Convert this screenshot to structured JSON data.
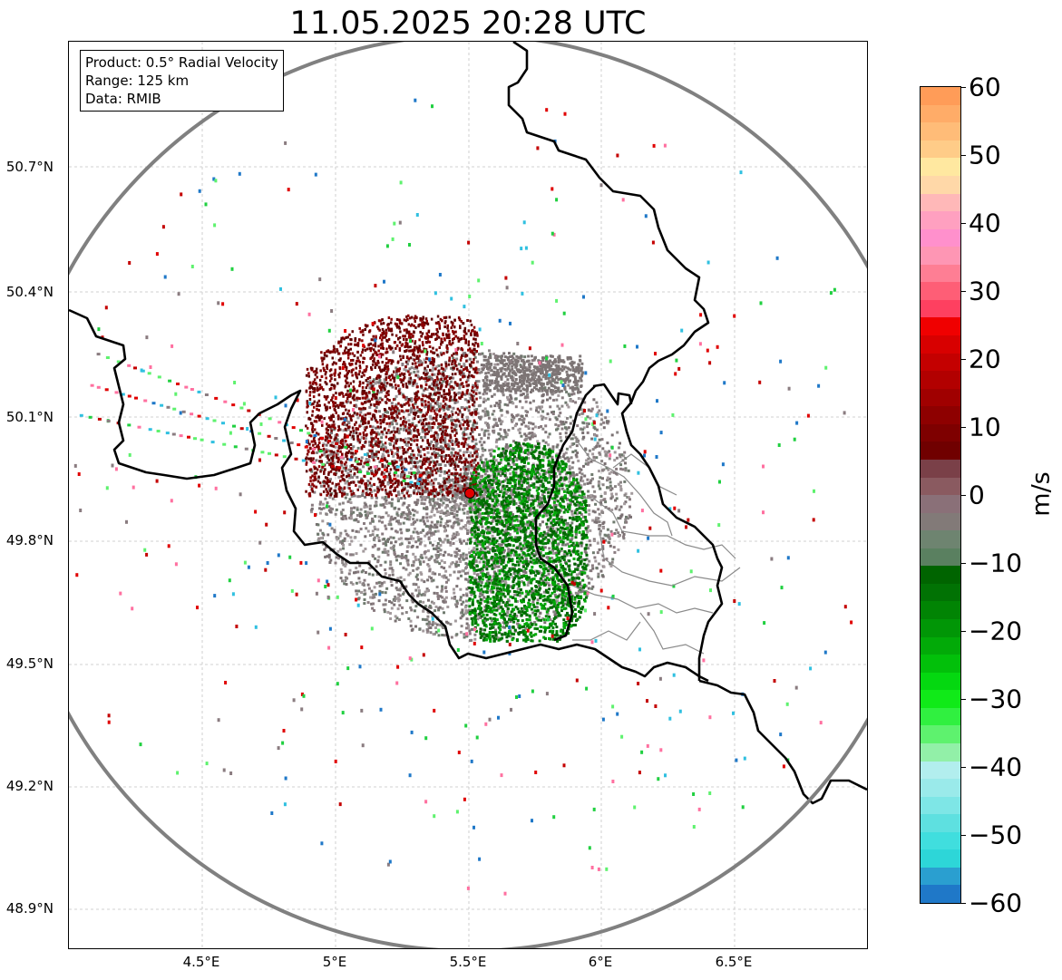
{
  "title": "11.05.2025 20:28 UTC",
  "info_box": {
    "product": "Product: 0.5° Radial Velocity",
    "range": "Range: 125 km",
    "data": "Data: RMIB"
  },
  "lat_labels": [
    "50.7°N",
    "50.4°N",
    "50.1°N",
    "49.8°N",
    "49.5°N",
    "49.2°N",
    "48.9°N"
  ],
  "lon_labels": [
    "4.5°E",
    "5°E",
    "5.5°E",
    "6°E",
    "6.5°E"
  ],
  "colorbar": {
    "label": "m/s",
    "ticks": [
      "60",
      "50",
      "40",
      "30",
      "20",
      "10",
      "0",
      "−10",
      "−20",
      "−30",
      "−40",
      "−50",
      "−60"
    ],
    "colors": [
      "#1f78c8",
      "#2a9fd0",
      "#2dd6d8",
      "#40dede",
      "#5ee0e0",
      "#7ee6e6",
      "#9aeaea",
      "#b2eeee",
      "#92f0a8",
      "#5ef26e",
      "#30f040",
      "#10ea18",
      "#04d810",
      "#02c00a",
      "#02aa08",
      "#019606",
      "#018404",
      "#017204",
      "#006400",
      "#5a8060",
      "#6e8470",
      "#827a78",
      "#8a7078",
      "#8a5a60",
      "#7a4048",
      "#700000",
      "#7e0000",
      "#8e0000",
      "#a00000",
      "#b20000",
      "#c40000",
      "#d80000",
      "#f00000",
      "#fe4060",
      "#fe5e76",
      "#fe7e94",
      "#fe96b4",
      "#ff90cc",
      "#ffa0c0",
      "#ffb8b8",
      "#ffd8a8",
      "#ffe8a0",
      "#ffcc88",
      "#ffbc78",
      "#ffac68",
      "#ff9c58"
    ]
  },
  "map": {
    "radar_site": "RMIB",
    "colors": {
      "range_ring": "#808080",
      "border": "#000000",
      "province": "#808080",
      "site_marker": "#e00000",
      "grid": "#c0c0c0"
    }
  }
}
